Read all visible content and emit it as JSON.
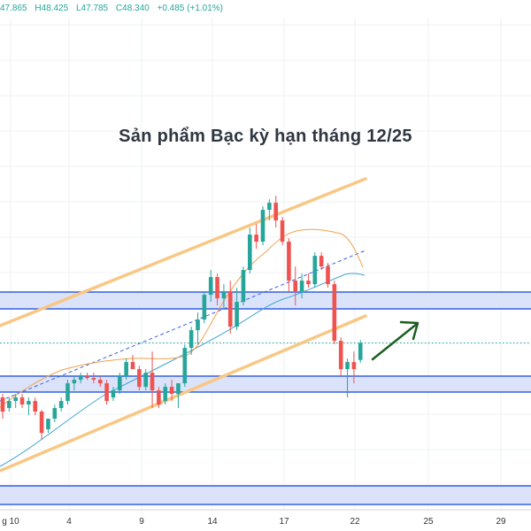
{
  "header": {
    "open": "47.865",
    "high": "H48.425",
    "low": "L47.785",
    "close": "C48.340",
    "change": "+0.485 (+1.01%)"
  },
  "chart_data": {
    "type": "candlestick",
    "title": "Sản phẩm Bạc kỳ hạn tháng 12/25",
    "x_tick_labels": [
      "g 10",
      "4",
      "9",
      "14",
      "17",
      "22",
      "25",
      "29"
    ],
    "grid": true,
    "colors": {
      "up": "#26a69a",
      "down": "#ef5350",
      "channel": "#f9c784",
      "zone_fill": "#dbe3fb",
      "zone_border": "#3460e0",
      "ma_orange": "#f2a14a",
      "ma_blue": "#3fa4d4",
      "trend_dashed": "#3960e3",
      "arrow": "#1b5e20",
      "current_price_line": "#26a69a"
    },
    "candles_ohlc": [
      [
        46.8,
        46.9,
        46.2,
        46.4
      ],
      [
        46.5,
        46.8,
        46.4,
        46.7
      ],
      [
        46.7,
        46.9,
        46.5,
        46.8
      ],
      [
        46.8,
        46.9,
        46.5,
        46.6
      ],
      [
        46.6,
        46.8,
        46.3,
        46.7
      ],
      [
        46.7,
        46.8,
        46.3,
        46.4
      ],
      [
        46.4,
        46.45,
        45.6,
        45.8
      ],
      [
        45.9,
        46.2,
        45.8,
        46.2
      ],
      [
        46.2,
        46.6,
        46.1,
        46.5
      ],
      [
        46.5,
        46.8,
        46.4,
        46.7
      ],
      [
        46.7,
        47.3,
        46.6,
        47.2
      ],
      [
        47.2,
        47.4,
        47.0,
        47.3
      ],
      [
        47.3,
        47.5,
        47.2,
        47.4
      ],
      [
        47.4,
        47.5,
        47.3,
        47.35
      ],
      [
        47.35,
        47.5,
        47.2,
        47.3
      ],
      [
        47.3,
        47.4,
        47.1,
        47.2
      ],
      [
        47.2,
        47.3,
        46.6,
        46.7
      ],
      [
        46.8,
        47.1,
        46.7,
        47.0
      ],
      [
        47.0,
        47.5,
        46.9,
        47.4
      ],
      [
        47.4,
        47.9,
        47.3,
        47.8
      ],
      [
        47.8,
        48.0,
        47.6,
        47.6
      ],
      [
        47.6,
        47.7,
        47.0,
        47.1
      ],
      [
        47.1,
        47.6,
        47.0,
        47.5
      ],
      [
        47.5,
        48.1,
        46.5,
        47.0
      ],
      [
        47.0,
        47.1,
        46.5,
        46.6
      ],
      [
        46.7,
        47.2,
        46.6,
        47.1
      ],
      [
        47.1,
        47.3,
        46.7,
        46.9
      ],
      [
        46.9,
        47.2,
        46.5,
        47.2
      ],
      [
        47.2,
        48.3,
        47.1,
        48.2
      ],
      [
        48.2,
        48.8,
        48.0,
        48.7
      ],
      [
        48.7,
        49.2,
        48.3,
        49.0
      ],
      [
        49.0,
        49.8,
        48.9,
        49.7
      ],
      [
        49.7,
        50.4,
        49.5,
        50.2
      ],
      [
        50.2,
        50.3,
        49.4,
        49.6
      ],
      [
        49.6,
        50.0,
        49.3,
        49.8
      ],
      [
        49.8,
        50.1,
        48.6,
        48.8
      ],
      [
        48.8,
        49.9,
        48.7,
        49.5
      ],
      [
        49.5,
        50.5,
        49.4,
        50.4
      ],
      [
        50.4,
        51.6,
        50.3,
        51.4
      ],
      [
        51.4,
        51.7,
        51.0,
        51.2
      ],
      [
        51.2,
        52.2,
        51.1,
        52.1
      ],
      [
        52.1,
        52.4,
        51.8,
        52.3
      ],
      [
        52.3,
        52.5,
        51.6,
        51.8
      ],
      [
        51.8,
        51.9,
        51.1,
        51.2
      ],
      [
        51.2,
        51.3,
        49.8,
        50.1
      ],
      [
        50.1,
        50.5,
        49.4,
        49.8
      ],
      [
        49.8,
        50.3,
        49.6,
        50.1
      ],
      [
        50.1,
        50.3,
        49.9,
        50.0
      ],
      [
        50.0,
        50.9,
        49.9,
        50.8
      ],
      [
        50.8,
        50.9,
        50.4,
        50.5
      ],
      [
        50.5,
        50.6,
        49.9,
        50.0
      ],
      [
        50.0,
        50.1,
        48.3,
        48.4
      ],
      [
        48.4,
        48.5,
        47.4,
        47.6
      ],
      [
        47.6,
        47.9,
        46.8,
        47.8
      ],
      [
        47.8,
        48.1,
        47.2,
        47.6
      ],
      [
        47.86,
        48.42,
        47.78,
        48.34
      ]
    ]
  }
}
